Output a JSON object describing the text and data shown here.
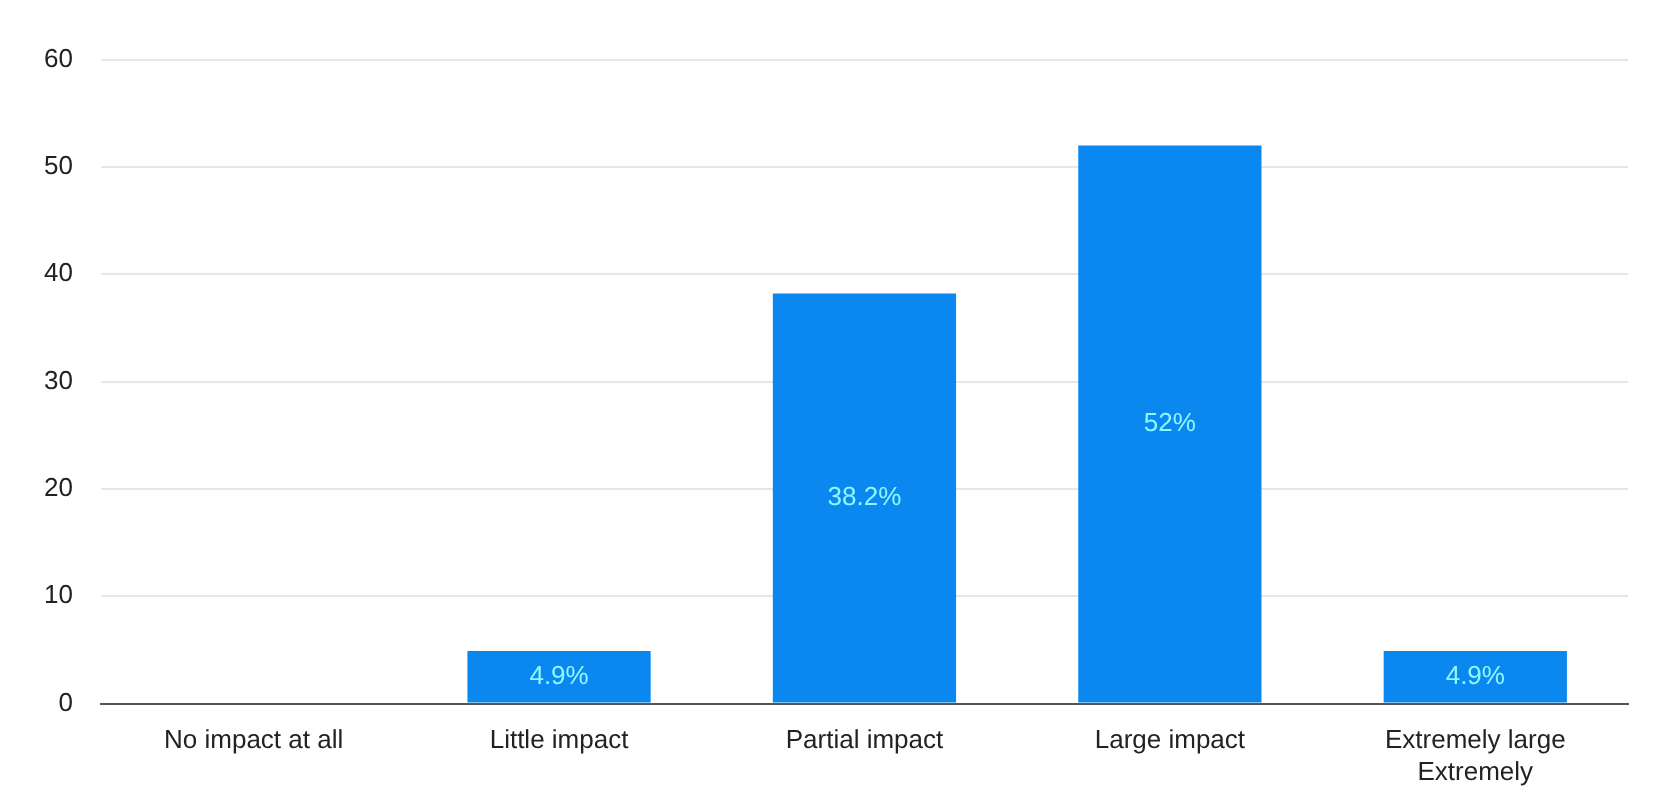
{
  "chart_data": {
    "type": "bar",
    "categories": [
      "No impact at all",
      "Little impact",
      "Partial impact",
      "Large impact",
      "Extremely large\nExtremely"
    ],
    "values": [
      0,
      4.9,
      38.2,
      52,
      4.9
    ],
    "value_labels": [
      null,
      "4.9%",
      "38.2%",
      "52%",
      "4.9%"
    ],
    "color": "#0a88ef",
    "ylim": [
      0,
      60
    ],
    "yticks": [
      0,
      10,
      20,
      30,
      40,
      50,
      60
    ],
    "grid": "y",
    "legend": false
  }
}
